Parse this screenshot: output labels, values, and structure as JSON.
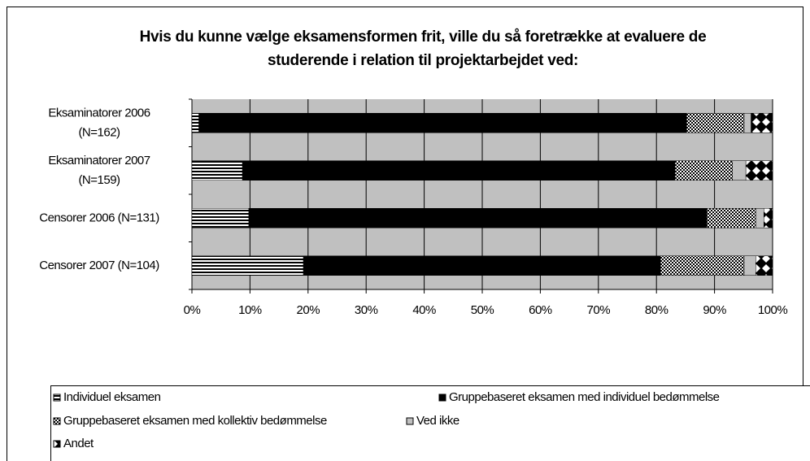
{
  "chart_data": {
    "type": "bar",
    "orientation": "horizontal",
    "stacked": true,
    "title": "Hvis du kunne vælge eksamensformen frit, ville du så foretrække at evaluere de studerende i relation til projektarbejdet ved:",
    "categories": [
      "Eksaminatorer 2006 (N=162)",
      "Eksaminatorer 2007 (N=159)",
      "Censorer 2006 (N=131)",
      "Censorer 2007 (N=104)"
    ],
    "series": [
      {
        "name": "Individuel eksamen",
        "color": "stripes",
        "values": [
          1.2,
          8.7,
          9.8,
          19.2
        ]
      },
      {
        "name": "Gruppebaseret eksamen med individuel bedømmelse",
        "color": "#000000",
        "values": [
          84.0,
          74.5,
          78.9,
          61.5
        ]
      },
      {
        "name": "Gruppebaseret eksamen med kollektiv bedømmelse",
        "color": "checker",
        "values": [
          9.9,
          9.9,
          8.4,
          14.4
        ]
      },
      {
        "name": "Ved ikke",
        "color": "#c0c0c0",
        "values": [
          1.2,
          2.3,
          1.4,
          2.0
        ]
      },
      {
        "name": "Andet",
        "color": "diamonds",
        "values": [
          3.7,
          4.6,
          1.5,
          2.9
        ]
      }
    ],
    "xlim": [
      0,
      100
    ],
    "xticks": [
      {
        "value": 0,
        "label": "0%"
      },
      {
        "value": 10,
        "label": "10%"
      },
      {
        "value": 20,
        "label": "20%"
      },
      {
        "value": 30,
        "label": "30%"
      },
      {
        "value": 40,
        "label": "40%"
      },
      {
        "value": 50,
        "label": "50%"
      },
      {
        "value": 60,
        "label": "60%"
      },
      {
        "value": 70,
        "label": "70%"
      },
      {
        "value": 80,
        "label": "80%"
      },
      {
        "value": 90,
        "label": "90%"
      },
      {
        "value": 100,
        "label": "100%"
      }
    ],
    "grid": true,
    "legend": "bottom"
  }
}
